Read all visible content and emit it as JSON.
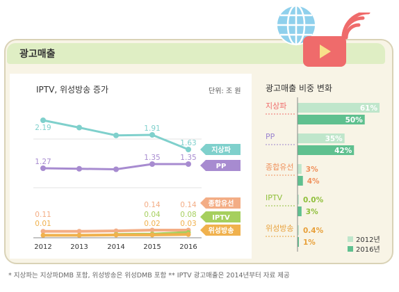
{
  "card_title": "광고매출",
  "footnote": "* 지상파는 지상파DMB 포함, 위성방송은 위성DMB 포함   ** IPTV 광고매출은 2014년부터 자료 제공",
  "chart_data": [
    {
      "type": "line",
      "title": "IPTV, 위성방송 증가",
      "unit": "단위: 조 원",
      "x": [
        "2012",
        "2013",
        "2014",
        "2015",
        "2016"
      ],
      "series": [
        {
          "name": "지상파",
          "values": [
            2.19,
            2.05,
            1.9,
            1.91,
            1.63
          ],
          "labels": [
            "2.19",
            "",
            "",
            "1.91",
            "1.63"
          ],
          "color": "#7fd0cc"
        },
        {
          "name": "PP",
          "values": [
            1.27,
            1.26,
            1.25,
            1.35,
            1.35
          ],
          "labels": [
            "1.27",
            "",
            "",
            "1.35",
            "1.35"
          ],
          "color": "#a78bd0"
        },
        {
          "name": "종합유선",
          "values": [
            0.11,
            0.11,
            0.12,
            0.14,
            0.14
          ],
          "labels": [
            "0.11",
            "",
            "",
            "0.14",
            "0.14"
          ],
          "color": "#f3ad85"
        },
        {
          "name": "IPTV",
          "values": [
            null,
            null,
            0.03,
            0.04,
            0.08
          ],
          "labels": [
            "",
            "",
            "",
            "0.04",
            "0.08"
          ],
          "color": "#a6cf5e"
        },
        {
          "name": "위성방송",
          "values": [
            0.01,
            0.01,
            0.02,
            0.02,
            0.03
          ],
          "labels": [
            "0.01",
            "",
            "",
            "0.02",
            "0.03"
          ],
          "color": "#f0b14d"
        }
      ]
    },
    {
      "type": "bar",
      "title": "광고매출 비중 변화",
      "categories": [
        "지상파",
        "PP",
        "종합유선",
        "IPTV",
        "위성방송"
      ],
      "category_colors": [
        "#ef6b6b",
        "#9b84cf",
        "#ef8f5a",
        "#8fbf3a",
        "#e8a03a"
      ],
      "series": [
        {
          "name": "2012년",
          "values": [
            61,
            35,
            3,
            0.0,
            0.4
          ],
          "labels": [
            "61%",
            "35%",
            "3%",
            "0.0%",
            "0.4%"
          ],
          "color": "#bfe6cb"
        },
        {
          "name": "2016년",
          "values": [
            50,
            42,
            4,
            3,
            1
          ],
          "labels": [
            "50%",
            "42%",
            "4%",
            "3%",
            "1%"
          ],
          "color": "#5fc08f"
        }
      ]
    }
  ]
}
